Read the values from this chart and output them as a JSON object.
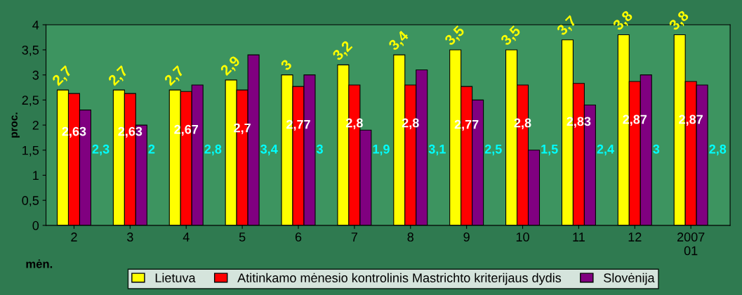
{
  "chart_data": {
    "type": "bar",
    "categories": [
      "2",
      "3",
      "4",
      "5",
      "6",
      "7",
      "8",
      "9",
      "10",
      "11",
      "12",
      "2007\n01"
    ],
    "xlabel": "mėn.",
    "ylabel": "proc.",
    "ylim": [
      0,
      4
    ],
    "yticks": [
      0,
      {
        "value": 0.5,
        "label": "0,5"
      },
      1,
      {
        "value": 1.5,
        "label": "1,5"
      },
      2,
      {
        "value": 2.5,
        "label": "2,5"
      },
      3,
      {
        "value": 3.5,
        "label": "3,5"
      },
      4
    ],
    "grid": false,
    "legend": "bottom",
    "series": [
      {
        "name": "Lietuva",
        "color": "#ffff00",
        "values": [
          2.7,
          2.7,
          2.7,
          2.9,
          3,
          3.2,
          3.4,
          3.5,
          3.5,
          3.7,
          3.8,
          3.8
        ],
        "value_labels": [
          "2,7",
          "2,7",
          "2,7",
          "2,9",
          "3",
          "3,2",
          "3,4",
          "3,5",
          "3,5",
          "3,7",
          "3,8",
          "3,8"
        ]
      },
      {
        "name": "Atitinkamo mėnesio kontrolinis Mastrichto kriterijaus dydis",
        "color": "#ff0000",
        "values": [
          2.63,
          2.63,
          2.67,
          2.7,
          2.77,
          2.8,
          2.8,
          2.77,
          2.8,
          2.83,
          2.87,
          2.87
        ],
        "value_labels": [
          "2,63",
          "2,63",
          "2,67",
          "2,7",
          "2,77",
          "2,8",
          "2,8",
          "2,77",
          "2,8",
          "2,83",
          "2,87",
          "2,87"
        ]
      },
      {
        "name": "Slovėnija",
        "color": "#800080",
        "values": [
          2.3,
          2,
          2.8,
          3.4,
          3,
          1.9,
          3.1,
          2.5,
          1.5,
          2.4,
          3,
          2.8
        ],
        "value_labels": [
          "2,3",
          "2",
          "2,8",
          "3,4",
          "3",
          "1,9",
          "3,1",
          "2,5",
          "1,5",
          "2,4",
          "3",
          "2,8"
        ]
      }
    ]
  }
}
